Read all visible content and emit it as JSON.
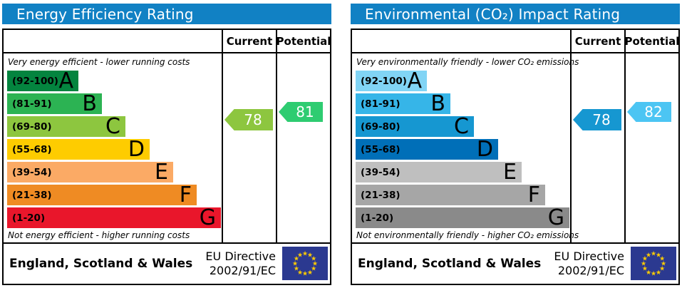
{
  "ui": {
    "header_bg": "#1181c4",
    "header_text_color": "#ffffff",
    "border_color": "#000000",
    "flag_bg": "#2b3990",
    "flag_star_color": "#ffcc00"
  },
  "chart_data": [
    {
      "type": "epc-band-chart",
      "title": "Energy Efficiency Rating",
      "columns": {
        "current_label": "Current",
        "potential_label": "Potential"
      },
      "top_caption": "Very energy efficient - lower running costs",
      "bottom_caption": "Not energy efficient - higher running costs",
      "bands": [
        {
          "grade": "A",
          "range_label": "(92-100)",
          "min": 92,
          "max": 100,
          "color": "#04843f"
        },
        {
          "grade": "B",
          "range_label": "(81-91)",
          "min": 81,
          "max": 91,
          "color": "#2cb353"
        },
        {
          "grade": "C",
          "range_label": "(69-80)",
          "min": 69,
          "max": 80,
          "color": "#8dc63f"
        },
        {
          "grade": "D",
          "range_label": "(55-68)",
          "min": 55,
          "max": 68,
          "color": "#fecc00"
        },
        {
          "grade": "E",
          "range_label": "(39-54)",
          "min": 39,
          "max": 54,
          "color": "#fbaa65"
        },
        {
          "grade": "F",
          "range_label": "(21-38)",
          "min": 21,
          "max": 38,
          "color": "#ef8b23"
        },
        {
          "grade": "G",
          "range_label": "(1-20)",
          "min": 1,
          "max": 20,
          "color": "#e9162b"
        }
      ],
      "current": {
        "value": 78,
        "band": "C",
        "arrow_color": "#8dc63f"
      },
      "potential": {
        "value": 81,
        "band": "B",
        "arrow_color": "#2ecc71"
      },
      "footer": {
        "region": "England, Scotland & Wales",
        "directive_line1": "EU Directive",
        "directive_line2": "2002/91/EC"
      }
    },
    {
      "type": "epc-band-chart",
      "title": "Environmental (CO₂) Impact Rating",
      "columns": {
        "current_label": "Current",
        "potential_label": "Potential"
      },
      "top_caption": "Very environmentally friendly - lower CO₂ emissions",
      "bottom_caption": "Not environmentally friendly - higher CO₂ emissions",
      "bands": [
        {
          "grade": "A",
          "range_label": "(92-100)",
          "min": 92,
          "max": 100,
          "color": "#81d4f5"
        },
        {
          "grade": "B",
          "range_label": "(81-91)",
          "min": 81,
          "max": 91,
          "color": "#36b5e8"
        },
        {
          "grade": "C",
          "range_label": "(69-80)",
          "min": 69,
          "max": 80,
          "color": "#1697d1"
        },
        {
          "grade": "D",
          "range_label": "(55-68)",
          "min": 55,
          "max": 68,
          "color": "#006fb8"
        },
        {
          "grade": "E",
          "range_label": "(39-54)",
          "min": 39,
          "max": 54,
          "color": "#bfbfbf"
        },
        {
          "grade": "F",
          "range_label": "(21-38)",
          "min": 21,
          "max": 38,
          "color": "#a6a6a6"
        },
        {
          "grade": "G",
          "range_label": "(1-20)",
          "min": 1,
          "max": 20,
          "color": "#8a8a8a"
        }
      ],
      "current": {
        "value": 78,
        "band": "C",
        "arrow_color": "#1697d1"
      },
      "potential": {
        "value": 82,
        "band": "B",
        "arrow_color": "#4cc5f3"
      },
      "footer": {
        "region": "England, Scotland & Wales",
        "directive_line1": "EU Directive",
        "directive_line2": "2002/91/EC"
      }
    }
  ]
}
